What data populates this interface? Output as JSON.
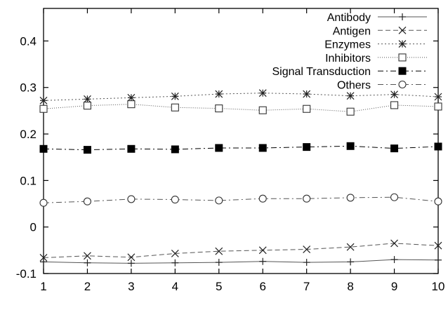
{
  "chart_data": {
    "type": "line",
    "title": "",
    "xlabel": "",
    "ylabel": "",
    "x": [
      1,
      2,
      3,
      4,
      5,
      6,
      7,
      8,
      9,
      10
    ],
    "xlim": [
      1,
      10
    ],
    "ylim": [
      -0.1,
      0.47
    ],
    "x_ticks": [
      "1",
      "2",
      "3",
      "4",
      "5",
      "6",
      "7",
      "8",
      "9",
      "10"
    ],
    "y_ticks": [
      "-0.1",
      "0",
      "0.1",
      "0.2",
      "0.3",
      "0.4"
    ],
    "grid": false,
    "legend_position": "top-right",
    "series": [
      {
        "name": "Antibody",
        "marker": "plus",
        "dash": "solid",
        "color": "#555555",
        "values": [
          -0.075,
          -0.077,
          -0.078,
          -0.077,
          -0.076,
          -0.074,
          -0.076,
          -0.075,
          -0.07,
          -0.071
        ]
      },
      {
        "name": "Antigen",
        "marker": "cross",
        "dash": "dashed",
        "color": "#555555",
        "values": [
          -0.066,
          -0.062,
          -0.065,
          -0.057,
          -0.052,
          -0.05,
          -0.048,
          -0.043,
          -0.035,
          -0.04
        ]
      },
      {
        "name": "Enzymes",
        "marker": "asterisk",
        "dash": "dotted",
        "color": "#555555",
        "values": [
          0.272,
          0.275,
          0.278,
          0.281,
          0.286,
          0.288,
          0.286,
          0.282,
          0.285,
          0.28
        ]
      },
      {
        "name": "Inhibitors",
        "marker": "open-square",
        "dash": "fine-dotted",
        "color": "#555555",
        "values": [
          0.254,
          0.261,
          0.264,
          0.257,
          0.255,
          0.251,
          0.254,
          0.248,
          0.262,
          0.259
        ]
      },
      {
        "name": "Signal Transduction",
        "marker": "filled-square",
        "dash": "dash-dot",
        "color": "#000000",
        "values": [
          0.168,
          0.166,
          0.168,
          0.167,
          0.17,
          0.17,
          0.172,
          0.174,
          0.169,
          0.173
        ]
      },
      {
        "name": "Others",
        "marker": "open-circle",
        "dash": "dash-dot",
        "color": "#555555",
        "values": [
          0.052,
          0.055,
          0.06,
          0.059,
          0.057,
          0.061,
          0.061,
          0.063,
          0.064,
          0.055
        ]
      }
    ]
  }
}
